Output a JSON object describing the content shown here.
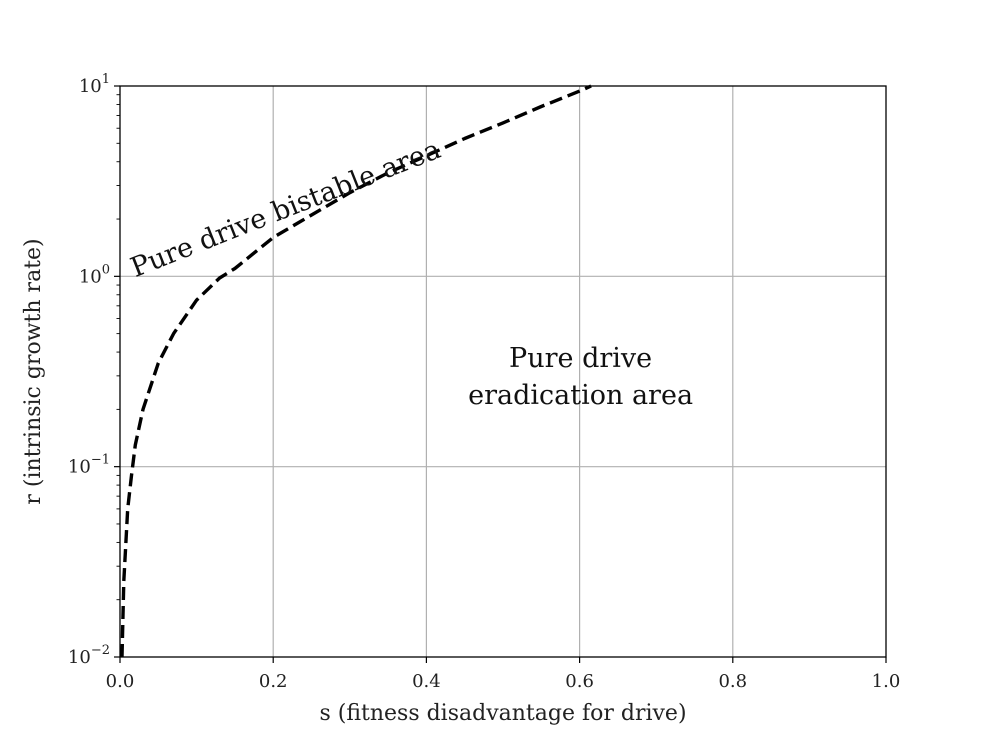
{
  "chart_data": {
    "type": "line",
    "title": "",
    "xlabel": "s (fitness disadvantage for drive)",
    "ylabel": "r (intrinsic growth rate)",
    "xlim": [
      0.0,
      1.0
    ],
    "ylim": [
      0.01,
      10
    ],
    "yscale": "log",
    "grid": true,
    "legend": "none",
    "x_ticks": [
      0.0,
      0.2,
      0.4,
      0.6,
      0.8,
      1.0
    ],
    "x_tick_labels": [
      "0.0",
      "0.2",
      "0.4",
      "0.6",
      "0.8",
      "1.0"
    ],
    "y_ticks": [
      {
        "value": 0.01,
        "base": "10",
        "exp": "−2"
      },
      {
        "value": 0.1,
        "base": "10",
        "exp": "−1"
      },
      {
        "value": 1,
        "base": "10",
        "exp": "0"
      },
      {
        "value": 10,
        "base": "10",
        "exp": "1"
      }
    ],
    "series": [
      {
        "style": "dashed",
        "color": "#000000",
        "x": [
          0.0026,
          0.005,
          0.01,
          0.015,
          0.02,
          0.03,
          0.05,
          0.07,
          0.1,
          0.13,
          0.15,
          0.2,
          0.25,
          0.3,
          0.35,
          0.4,
          0.45,
          0.5,
          0.55,
          0.6,
          0.615
        ],
        "y": [
          0.01,
          0.025,
          0.06,
          0.09,
          0.13,
          0.2,
          0.35,
          0.5,
          0.75,
          0.98,
          1.1,
          1.6,
          2.1,
          2.75,
          3.5,
          4.3,
          5.3,
          6.4,
          7.8,
          9.4,
          10.0
        ]
      }
    ],
    "annotations": [
      {
        "text": "Pure drive bistable area",
        "x": 0.02,
        "y": 1.2
      },
      {
        "text": "Pure drive",
        "x": 0.6,
        "y": 0.48
      },
      {
        "text": "eradication area",
        "x": 0.6,
        "y": 0.3
      }
    ]
  }
}
